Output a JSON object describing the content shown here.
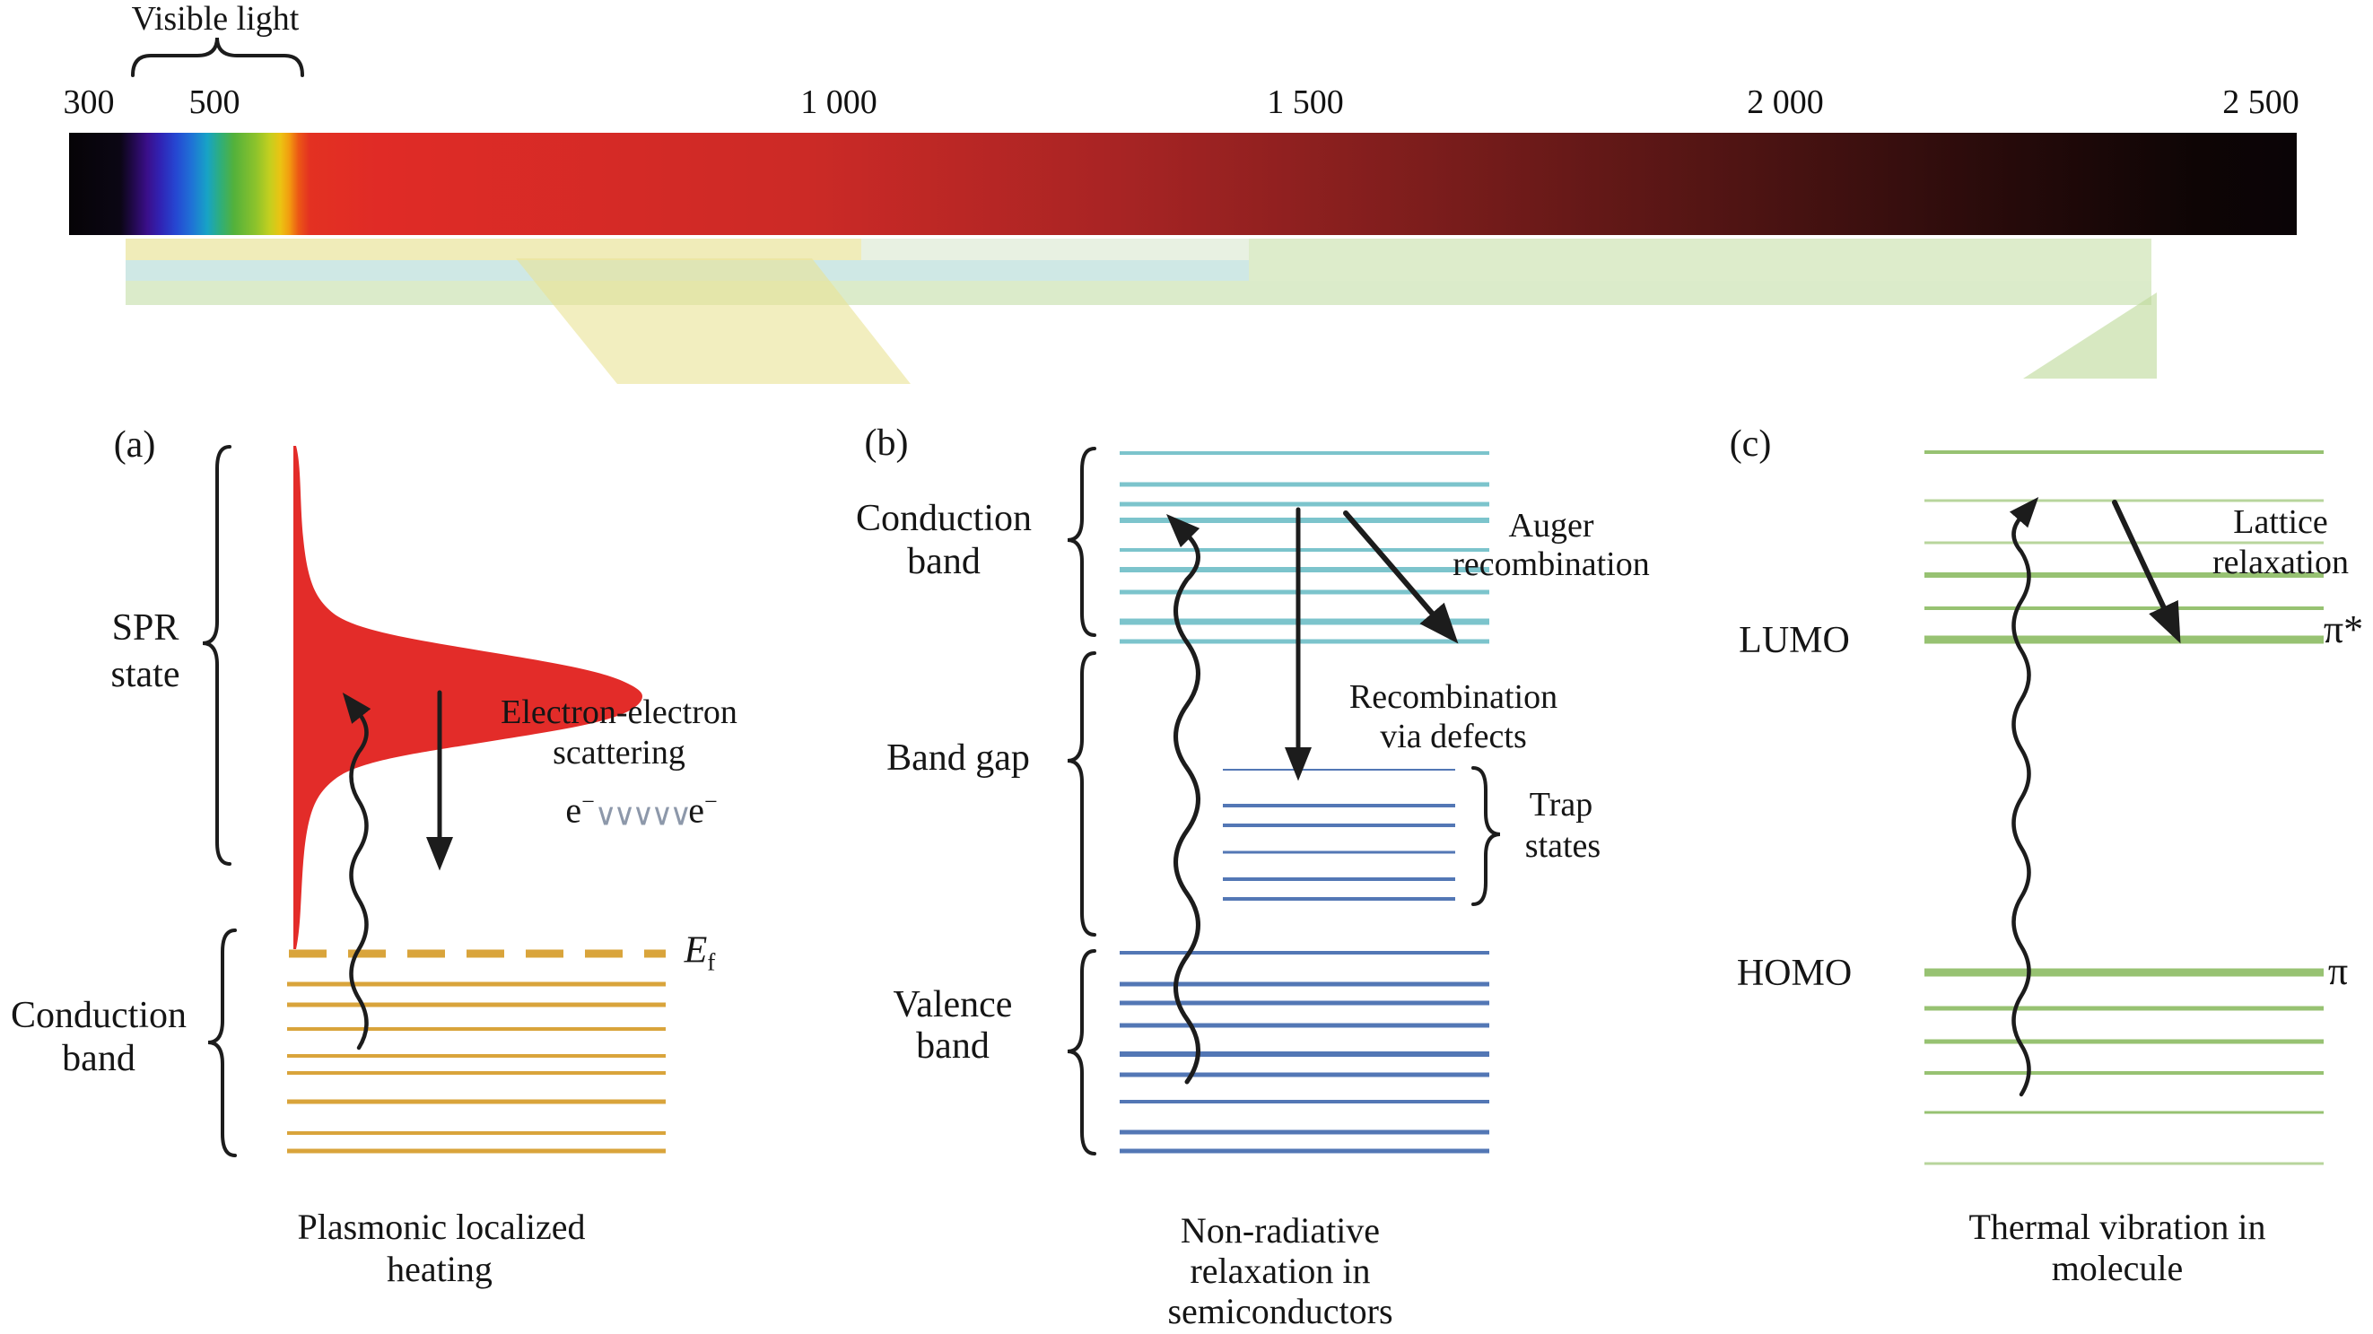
{
  "colors": {
    "gold": "#D9A43B",
    "red": "#E32C29",
    "teal": "#7CC4CC",
    "teal_light": "#A9D5DA",
    "blue": "#5377B5",
    "green": "#97C272",
    "green_light": "#B8D59C",
    "ink": "#1C1C1C"
  },
  "spectrum": {
    "visible_light_label": "Visible light",
    "ticks": [
      "300",
      "500",
      "1 000",
      "1 500",
      "2 000",
      "2 500"
    ]
  },
  "panel_a": {
    "label": "(a)",
    "spr_line1": "SPR",
    "spr_line2": "state",
    "scatter_line1": "Electron-electron",
    "scatter_line2": "scattering",
    "e_left_base": "e",
    "e_left_sup": "−",
    "e_wave": "∨∨∨∨∨",
    "e_right_base": "e",
    "e_right_sup": "−",
    "fermi_base": "E",
    "fermi_sub": "f",
    "band_line1": "Conduction",
    "band_line2": "band",
    "caption_line1": "Plasmonic localized",
    "caption_line2": "heating"
  },
  "panel_b": {
    "label": "(b)",
    "conduction_line1": "Conduction",
    "conduction_line2": "band",
    "auger_line1": "Auger",
    "auger_line2": "recombination",
    "defects_line1": "Recombination",
    "defects_line2": "via defects",
    "band_gap": "Band gap",
    "trap_line1": "Trap",
    "trap_line2": "states",
    "valence_line1": "Valence",
    "valence_line2": "band",
    "caption_line1": "Non-radiative",
    "caption_line2": "relaxation in",
    "caption_line3": "semiconductors"
  },
  "panel_c": {
    "label": "(c)",
    "lattice_line1": "Lattice",
    "lattice_line2": "relaxation",
    "lumo": "LUMO",
    "pi_star": "π*",
    "homo": "HOMO",
    "pi": "π",
    "caption_line1": "Thermal vibration in",
    "caption_line2": "molecule"
  }
}
